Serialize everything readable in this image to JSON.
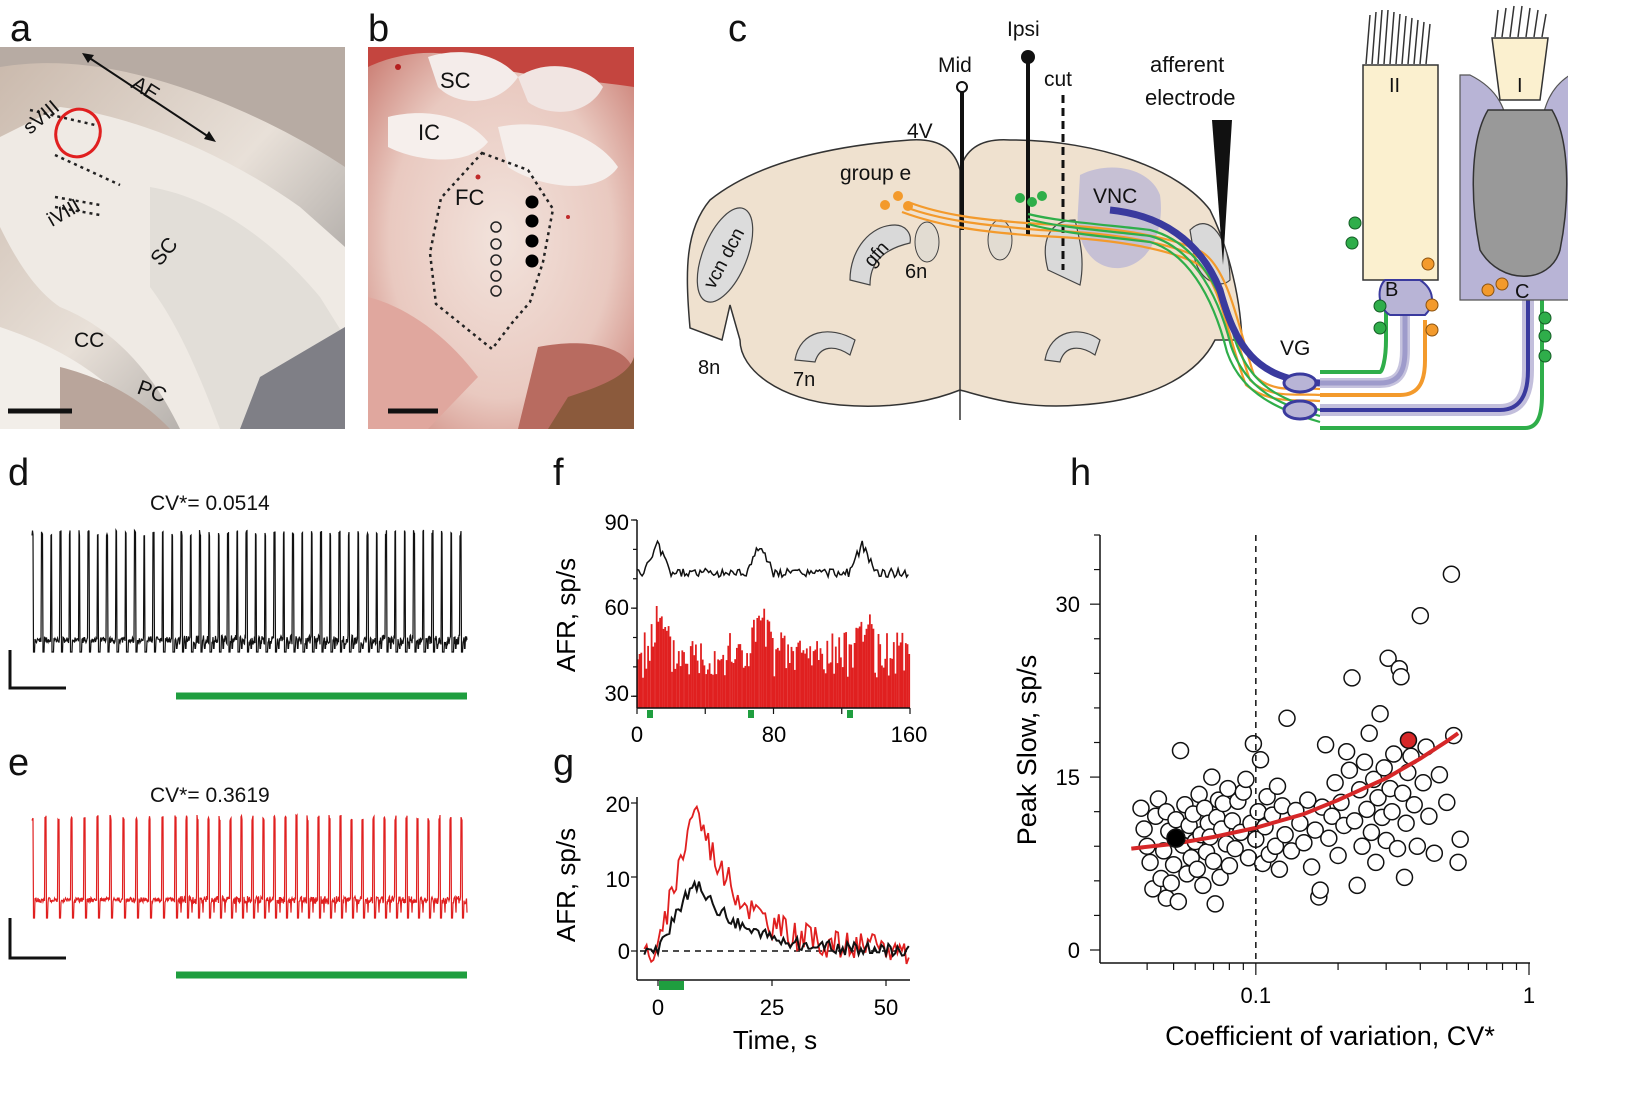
{
  "panels": {
    "a": "a",
    "b": "b",
    "c": "c",
    "d": "d",
    "e": "e",
    "f": "f",
    "g": "g",
    "h": "h"
  },
  "photo_a": {
    "labels": [
      "AE",
      "sVIII",
      "iVIII",
      "SC",
      "CC",
      "PC"
    ]
  },
  "photo_b": {
    "labels": [
      "SC",
      "IC",
      "FC"
    ]
  },
  "diagram_c": {
    "labels": {
      "mid": "Mid",
      "ipsi": "Ipsi",
      "cut": "cut",
      "afferent": "afferent",
      "electrode": "electrode",
      "fourthV": "4V",
      "group_e": "group e",
      "vcn_dcn": "vcn dcn",
      "gfn": "gfn",
      "sixn": "6n",
      "eightn": "8n",
      "sevenn": "7n",
      "vnc": "VNC",
      "vg": "VG",
      "hair_II": "II",
      "hair_I": "I",
      "calyx_B": "B",
      "calyx_C": "C"
    }
  },
  "trace_d": {
    "cv_label": "CV*=  0.0514"
  },
  "trace_e": {
    "cv_label": "CV*=  0.3619"
  },
  "plot_f": {
    "ylabel": "AFR, sp/s",
    "yticks": [
      "90",
      "60",
      "30"
    ],
    "xticks": [
      "0",
      "80",
      "160"
    ]
  },
  "plot_g": {
    "ylabel": "AFR, sp/s",
    "yticks": [
      "20",
      "10",
      "0"
    ],
    "xticks": [
      "0",
      "25",
      "50"
    ],
    "xlabel": "Time, s"
  },
  "chart_data": {
    "type": "scatter",
    "title": "",
    "xlabel": "Coefficient of variation, CV*",
    "ylabel": "Peak Slow, sp/s",
    "xscale": "log",
    "xlim": [
      0.03,
      1
    ],
    "ylim": [
      0,
      36
    ],
    "xtick_labels": [
      "0.1",
      "1"
    ],
    "ytick_labels": [
      "0",
      "15",
      "30"
    ],
    "reference_line_x": 0.1,
    "colors": {
      "points": "#ffffff",
      "fit": "#d62728",
      "highlight_black": "#000000",
      "highlight_red": "#d62728"
    },
    "fit_curve": {
      "x": [
        0.035,
        0.05,
        0.07,
        0.1,
        0.15,
        0.2,
        0.3,
        0.4,
        0.5,
        0.55
      ],
      "y": [
        8.8,
        9.2,
        9.8,
        10.6,
        11.8,
        13.0,
        14.9,
        16.6,
        18.1,
        18.8
      ]
    },
    "highlight_points": [
      {
        "x": 0.051,
        "y": 9.7,
        "color": "#000000"
      },
      {
        "x": 0.362,
        "y": 18.2,
        "color": "#d62728"
      }
    ],
    "points": [
      [
        0.038,
        12.3
      ],
      [
        0.039,
        10.5
      ],
      [
        0.04,
        9.0
      ],
      [
        0.041,
        7.6
      ],
      [
        0.042,
        5.3
      ],
      [
        0.043,
        11.6
      ],
      [
        0.044,
        13.1
      ],
      [
        0.045,
        6.2
      ],
      [
        0.046,
        8.6
      ],
      [
        0.047,
        4.5
      ],
      [
        0.047,
        12.0
      ],
      [
        0.048,
        10.3
      ],
      [
        0.049,
        5.8
      ],
      [
        0.05,
        7.4
      ],
      [
        0.051,
        11.3
      ],
      [
        0.052,
        4.2
      ],
      [
        0.053,
        17.3
      ],
      [
        0.054,
        9.1
      ],
      [
        0.055,
        12.6
      ],
      [
        0.056,
        6.6
      ],
      [
        0.057,
        10.8
      ],
      [
        0.058,
        8.0
      ],
      [
        0.059,
        11.8
      ],
      [
        0.06,
        9.4
      ],
      [
        0.061,
        7.0
      ],
      [
        0.062,
        13.5
      ],
      [
        0.063,
        10.0
      ],
      [
        0.064,
        5.6
      ],
      [
        0.065,
        12.3
      ],
      [
        0.066,
        8.5
      ],
      [
        0.067,
        11.0
      ],
      [
        0.068,
        9.8
      ],
      [
        0.069,
        15.0
      ],
      [
        0.07,
        7.7
      ],
      [
        0.071,
        4.0
      ],
      [
        0.072,
        11.5
      ],
      [
        0.073,
        13.0
      ],
      [
        0.074,
        6.3
      ],
      [
        0.075,
        10.5
      ],
      [
        0.076,
        12.7
      ],
      [
        0.078,
        9.2
      ],
      [
        0.079,
        14.0
      ],
      [
        0.08,
        7.3
      ],
      [
        0.082,
        11.2
      ],
      [
        0.084,
        8.8
      ],
      [
        0.086,
        12.9
      ],
      [
        0.088,
        10.2
      ],
      [
        0.09,
        13.7
      ],
      [
        0.092,
        14.8
      ],
      [
        0.094,
        8.0
      ],
      [
        0.096,
        11.0
      ],
      [
        0.098,
        17.9
      ],
      [
        0.1,
        9.6
      ],
      [
        0.102,
        12.0
      ],
      [
        0.104,
        16.5
      ],
      [
        0.106,
        7.5
      ],
      [
        0.108,
        10.7
      ],
      [
        0.11,
        13.3
      ],
      [
        0.112,
        8.3
      ],
      [
        0.115,
        11.7
      ],
      [
        0.118,
        9.0
      ],
      [
        0.12,
        14.2
      ],
      [
        0.122,
        7.0
      ],
      [
        0.125,
        12.5
      ],
      [
        0.128,
        10.0
      ],
      [
        0.13,
        20.1
      ],
      [
        0.135,
        8.6
      ],
      [
        0.14,
        12.1
      ],
      [
        0.145,
        11.0
      ],
      [
        0.15,
        9.3
      ],
      [
        0.155,
        13.0
      ],
      [
        0.16,
        7.2
      ],
      [
        0.165,
        10.4
      ],
      [
        0.17,
        4.6
      ],
      [
        0.172,
        5.2
      ],
      [
        0.175,
        12.4
      ],
      [
        0.18,
        17.8
      ],
      [
        0.185,
        9.7
      ],
      [
        0.19,
        11.6
      ],
      [
        0.195,
        14.5
      ],
      [
        0.2,
        8.2
      ],
      [
        0.205,
        12.8
      ],
      [
        0.21,
        10.8
      ],
      [
        0.215,
        17.2
      ],
      [
        0.22,
        15.6
      ],
      [
        0.225,
        23.6
      ],
      [
        0.23,
        11.2
      ],
      [
        0.235,
        5.6
      ],
      [
        0.24,
        13.9
      ],
      [
        0.245,
        9.0
      ],
      [
        0.25,
        16.3
      ],
      [
        0.255,
        12.2
      ],
      [
        0.26,
        18.8
      ],
      [
        0.265,
        10.2
      ],
      [
        0.27,
        14.8
      ],
      [
        0.275,
        7.6
      ],
      [
        0.28,
        13.2
      ],
      [
        0.285,
        20.5
      ],
      [
        0.29,
        11.5
      ],
      [
        0.295,
        15.8
      ],
      [
        0.3,
        9.5
      ],
      [
        0.305,
        25.3
      ],
      [
        0.31,
        14.0
      ],
      [
        0.315,
        12.0
      ],
      [
        0.32,
        17.0
      ],
      [
        0.33,
        8.8
      ],
      [
        0.335,
        24.4
      ],
      [
        0.34,
        23.7
      ],
      [
        0.345,
        13.6
      ],
      [
        0.35,
        6.3
      ],
      [
        0.355,
        11.0
      ],
      [
        0.36,
        15.4
      ],
      [
        0.37,
        16.8
      ],
      [
        0.38,
        12.6
      ],
      [
        0.39,
        9.0
      ],
      [
        0.4,
        29.0
      ],
      [
        0.41,
        14.5
      ],
      [
        0.42,
        17.6
      ],
      [
        0.43,
        11.6
      ],
      [
        0.45,
        8.4
      ],
      [
        0.47,
        15.2
      ],
      [
        0.5,
        12.8
      ],
      [
        0.52,
        32.6
      ],
      [
        0.53,
        18.6
      ],
      [
        0.55,
        7.6
      ],
      [
        0.56,
        9.6
      ]
    ]
  }
}
